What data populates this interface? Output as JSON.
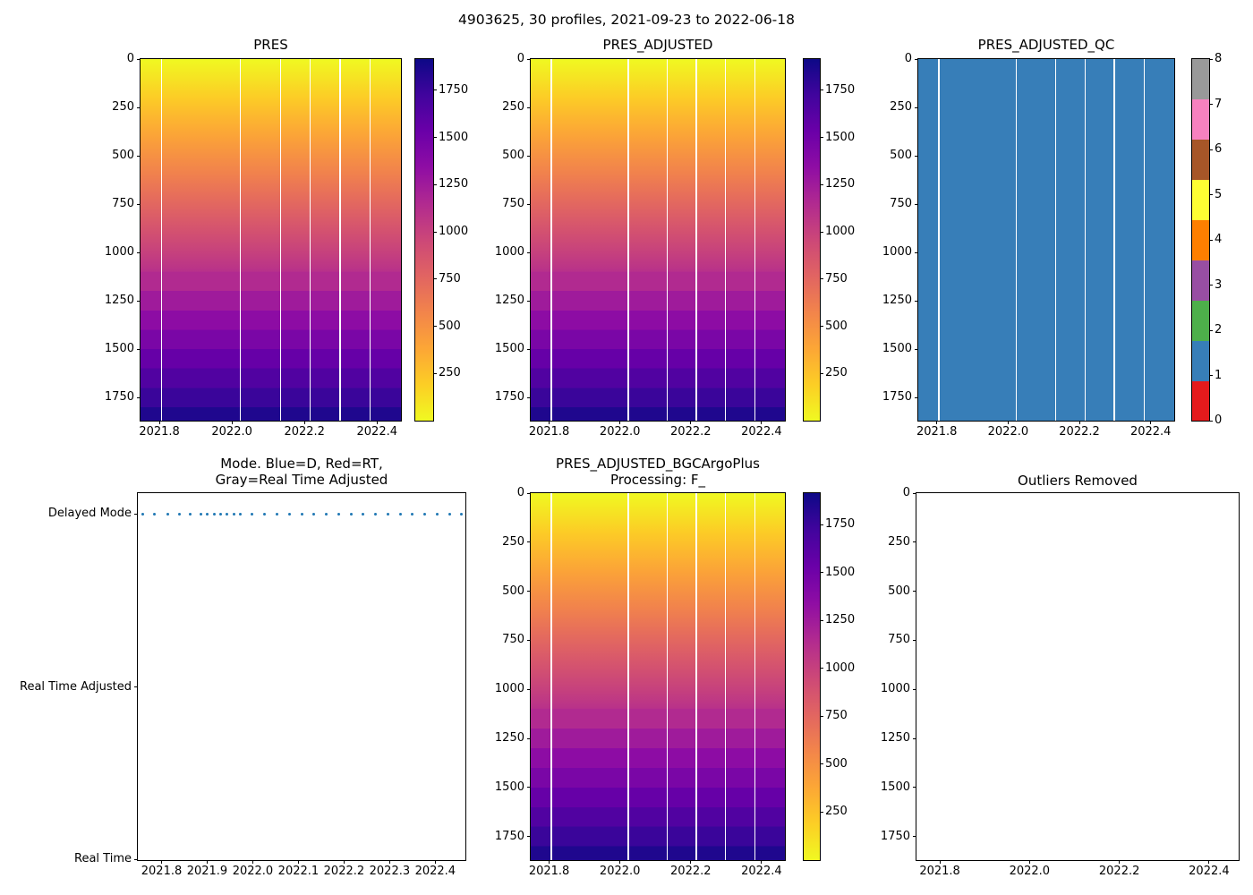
{
  "figure_title": "4903625, 30 profiles, 2021-09-23 to 2022-06-18",
  "colors": {
    "plasma_hex_0_to_1": [
      "#0d0887",
      "#41049d",
      "#6a00a8",
      "#8f0da4",
      "#b12a90",
      "#cc4778",
      "#e16462",
      "#f2844b",
      "#fca636",
      "#fcce25",
      "#f0f921"
    ],
    "qc_fill": "#377eb8",
    "mode_dot": "#1f77b4"
  },
  "chart_data": [
    {
      "id": "pres",
      "type": "heatmap",
      "title": "PRES",
      "x_axis": {
        "ticks": [
          2021.8,
          2022.0,
          2022.2,
          2022.4
        ],
        "labels": [
          "2021.8",
          "2022.0",
          "2022.2",
          "2022.4"
        ],
        "range": [
          2021.748,
          2022.466
        ]
      },
      "y_axis": {
        "ticks": [
          0,
          250,
          500,
          750,
          1000,
          1250,
          1500,
          1750
        ],
        "labels": [
          "0",
          "250",
          "500",
          "750",
          "1000",
          "1250",
          "1500",
          "1750"
        ],
        "range": [
          0,
          1870
        ],
        "inverted": true
      },
      "value_model": {
        "surface_value": 0,
        "max_value": 1912,
        "smooth_to": 1100,
        "band_step": 100,
        "colormap": "plasma_r"
      },
      "profile_gap_fracs": [
        0.081,
        0.383,
        0.537,
        0.652,
        0.766,
        0.882
      ],
      "colorbar": {
        "ticks": [
          250,
          500,
          750,
          1000,
          1250,
          1500,
          1750
        ],
        "labels": [
          "250",
          "500",
          "750",
          "1000",
          "1250",
          "1500",
          "1750"
        ],
        "range": [
          0,
          1915
        ],
        "colormap": "plasma_r"
      }
    },
    {
      "id": "pres_adjusted",
      "type": "heatmap",
      "title": "PRES_ADJUSTED",
      "x_axis": {
        "ticks": [
          2021.8,
          2022.0,
          2022.2,
          2022.4
        ],
        "labels": [
          "2021.8",
          "2022.0",
          "2022.2",
          "2022.4"
        ],
        "range": [
          2021.748,
          2022.466
        ]
      },
      "y_axis": {
        "ticks": [
          0,
          250,
          500,
          750,
          1000,
          1250,
          1500,
          1750
        ],
        "labels": [
          "0",
          "250",
          "500",
          "750",
          "1000",
          "1250",
          "1500",
          "1750"
        ],
        "range": [
          0,
          1870
        ],
        "inverted": true
      },
      "value_model": {
        "surface_value": 0,
        "max_value": 1912,
        "smooth_to": 1100,
        "band_step": 100,
        "colormap": "plasma_r"
      },
      "profile_gap_fracs": [
        0.081,
        0.383,
        0.537,
        0.652,
        0.766,
        0.882
      ],
      "colorbar": {
        "ticks": [
          250,
          500,
          750,
          1000,
          1250,
          1500,
          1750
        ],
        "labels": [
          "250",
          "500",
          "750",
          "1000",
          "1250",
          "1500",
          "1750"
        ],
        "range": [
          0,
          1915
        ],
        "colormap": "plasma_r"
      }
    },
    {
      "id": "pres_adjusted_qc",
      "type": "heatmap_categorical",
      "title": "PRES_ADJUSTED_QC",
      "uniform_value": 1,
      "x_axis": {
        "ticks": [
          2021.8,
          2022.0,
          2022.2,
          2022.4
        ],
        "labels": [
          "2021.8",
          "2022.0",
          "2022.2",
          "2022.4"
        ],
        "range": [
          2021.748,
          2022.466
        ]
      },
      "y_axis": {
        "ticks": [
          0,
          250,
          500,
          750,
          1000,
          1250,
          1500,
          1750
        ],
        "labels": [
          "0",
          "250",
          "500",
          "750",
          "1000",
          "1250",
          "1500",
          "1750"
        ],
        "range": [
          0,
          1870
        ],
        "inverted": true
      },
      "profile_gap_fracs": [
        0.081,
        0.383,
        0.537,
        0.652,
        0.766,
        0.882
      ],
      "colorbar": {
        "ticks": [
          0,
          1,
          2,
          3,
          4,
          5,
          6,
          7,
          8
        ],
        "labels": [
          "0",
          "1",
          "2",
          "3",
          "4",
          "5",
          "6",
          "7",
          "8"
        ],
        "range": [
          0,
          8
        ],
        "palette": [
          "#e41a1c",
          "#377eb8",
          "#4daf4a",
          "#984ea3",
          "#ff7f00",
          "#ffff33",
          "#a65628",
          "#f781bf",
          "#999999"
        ]
      }
    },
    {
      "id": "mode",
      "type": "scatter",
      "title_lines": [
        "Mode. Blue=D, Red=RT,",
        "Gray=Real Time Adjusted"
      ],
      "x_axis": {
        "ticks": [
          2021.8,
          2021.9,
          2022.0,
          2022.1,
          2022.2,
          2022.3,
          2022.4
        ],
        "labels": [
          "2021.8",
          "2021.9",
          "2022.0",
          "2022.1",
          "2022.2",
          "2022.3",
          "2022.4"
        ],
        "range": [
          2021.748,
          2022.466
        ]
      },
      "y_axis": {
        "categories": [
          "Delayed Mode",
          "Real Time Adjusted",
          "Real Time"
        ],
        "values": [
          2,
          1,
          0
        ],
        "range": [
          0,
          2.12
        ]
      },
      "points": {
        "category": "Delayed Mode",
        "category_value": 2,
        "color": "#1f77b4",
        "x": [
          2021.758,
          2021.784,
          2021.813,
          2021.839,
          2021.863,
          2021.886,
          2021.901,
          2021.915,
          2021.929,
          2021.944,
          2021.958,
          2021.972,
          2021.999,
          2022.026,
          2022.053,
          2022.08,
          2022.107,
          2022.134,
          2022.161,
          2022.188,
          2022.215,
          2022.242,
          2022.269,
          2022.296,
          2022.323,
          2022.35,
          2022.377,
          2022.404,
          2022.431,
          2022.458
        ]
      }
    },
    {
      "id": "pres_adjusted_bgc",
      "type": "heatmap",
      "title_lines": [
        "PRES_ADJUSTED_BGCArgoPlus",
        "Processing: F_"
      ],
      "x_axis": {
        "ticks": [
          2021.8,
          2022.0,
          2022.2,
          2022.4
        ],
        "labels": [
          "2021.8",
          "2022.0",
          "2022.2",
          "2022.4"
        ],
        "range": [
          2021.748,
          2022.466
        ]
      },
      "y_axis": {
        "ticks": [
          0,
          250,
          500,
          750,
          1000,
          1250,
          1500,
          1750
        ],
        "labels": [
          "0",
          "250",
          "500",
          "750",
          "1000",
          "1250",
          "1500",
          "1750"
        ],
        "range": [
          0,
          1870
        ],
        "inverted": true
      },
      "value_model": {
        "surface_value": 0,
        "max_value": 1912,
        "smooth_to": 1100,
        "band_step": 100,
        "colormap": "plasma_r"
      },
      "profile_gap_fracs": [
        0.081,
        0.383,
        0.537,
        0.652,
        0.766,
        0.882
      ],
      "colorbar": {
        "ticks": [
          250,
          500,
          750,
          1000,
          1250,
          1500,
          1750
        ],
        "labels": [
          "250",
          "500",
          "750",
          "1000",
          "1250",
          "1500",
          "1750"
        ],
        "range": [
          0,
          1915
        ],
        "colormap": "plasma_r"
      }
    },
    {
      "id": "outliers_removed",
      "type": "empty",
      "title": "Outliers Removed",
      "x_axis": {
        "ticks": [
          2021.8,
          2022.0,
          2022.2,
          2022.4
        ],
        "labels": [
          "2021.8",
          "2022.0",
          "2022.2",
          "2022.4"
        ],
        "range": [
          2021.748,
          2022.466
        ]
      },
      "y_axis": {
        "ticks": [
          0,
          250,
          500,
          750,
          1000,
          1250,
          1500,
          1750
        ],
        "labels": [
          "0",
          "250",
          "500",
          "750",
          "1000",
          "1250",
          "1500",
          "1750"
        ],
        "range": [
          0,
          1870
        ],
        "inverted": true
      },
      "points": []
    }
  ]
}
